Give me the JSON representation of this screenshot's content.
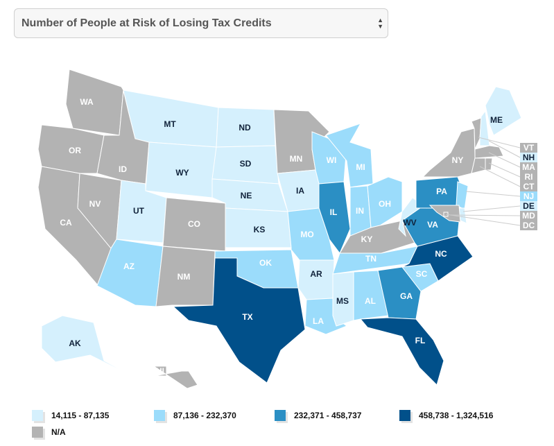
{
  "selector": {
    "label": "Number of People at Risk of Losing Tax Credits"
  },
  "colors": {
    "c1": "#d5f0fd",
    "c2": "#9bdcfb",
    "c3": "#2b8fc4",
    "c4": "#01508a",
    "na": "#b3b3b3"
  },
  "legend": [
    {
      "key": "c1",
      "label": "14,115 - 87,135"
    },
    {
      "key": "c2",
      "label": "87,136 - 232,370"
    },
    {
      "key": "c3",
      "label": "232,371 - 458,737"
    },
    {
      "key": "c4",
      "label": "458,738 - 1,324,516"
    },
    {
      "key": "na",
      "label": "N/A"
    }
  ],
  "states": {
    "WA": "na",
    "OR": "na",
    "CA": "na",
    "NV": "na",
    "ID": "na",
    "MT": "c1",
    "WY": "c1",
    "UT": "c1",
    "CO": "na",
    "AZ": "c2",
    "NM": "na",
    "ND": "c1",
    "SD": "c1",
    "NE": "c1",
    "KS": "c1",
    "OK": "c2",
    "TX": "c4",
    "MN": "na",
    "IA": "c1",
    "MO": "c2",
    "AR": "c1",
    "LA": "c2",
    "WI": "c2",
    "IL": "c3",
    "MI": "c2",
    "IN": "c2",
    "OH": "c2",
    "KY": "na",
    "TN": "c2",
    "MS": "c1",
    "AL": "c2",
    "GA": "c3",
    "FL": "c4",
    "SC": "c2",
    "NC": "c4",
    "VA": "c3",
    "WV": "c1",
    "PA": "c3",
    "NY": "na",
    "VT": "na",
    "NH": "c1",
    "ME": "c1",
    "MA": "na",
    "RI": "na",
    "CT": "na",
    "NJ": "c2",
    "DE": "c1",
    "MD": "na",
    "DC": "na",
    "AK": "c1",
    "HI": "na"
  }
}
